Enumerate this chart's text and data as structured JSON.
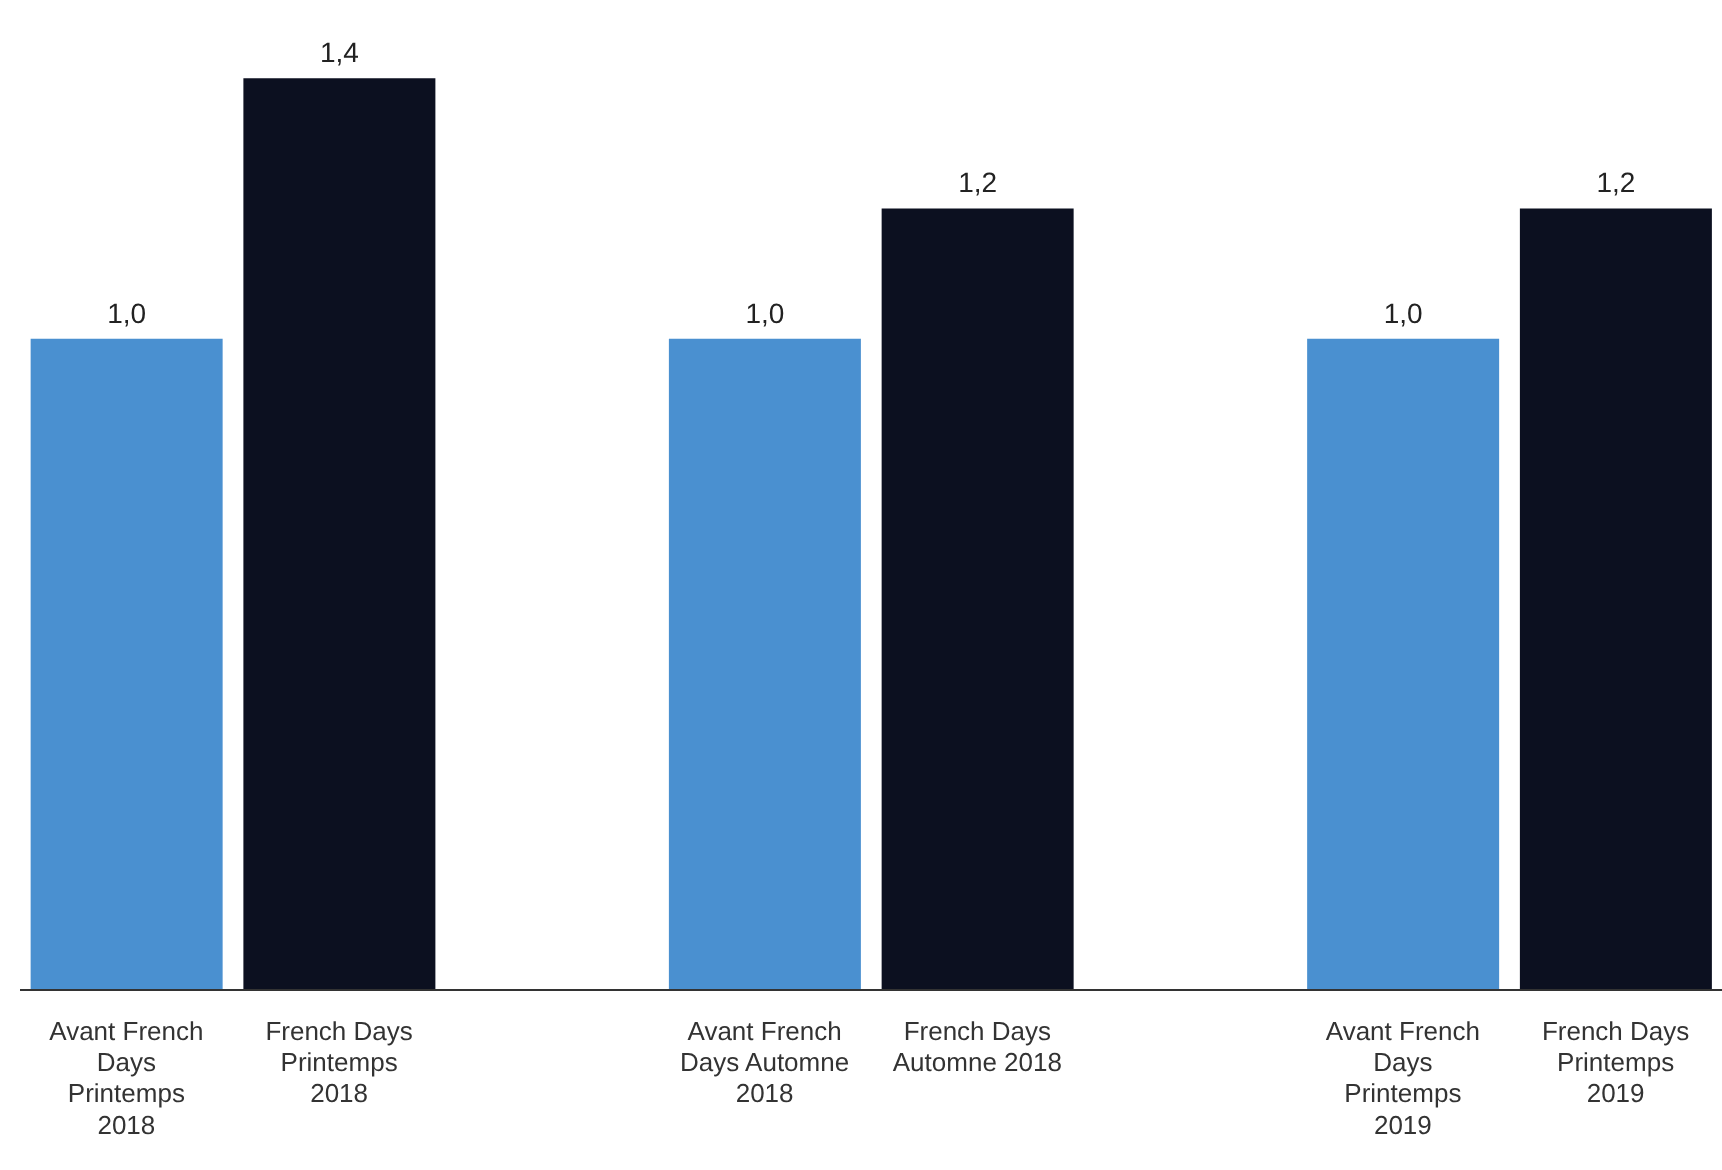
{
  "chart_data": {
    "type": "bar",
    "categories": [
      "Avant French Days Printemps 2018",
      "French Days Printemps 2018",
      "Avant French Days Automne 2018",
      "French Days Automne 2018",
      "Avant French Days Printemps 2019",
      "French Days Printemps 2019"
    ],
    "values": [
      1.0,
      1.4,
      1.0,
      1.2,
      1.0,
      1.2
    ],
    "colors": [
      "#4a90d0",
      "#0c1020",
      "#4a90d0",
      "#0c1020",
      "#4a90d0",
      "#0c1020"
    ],
    "value_labels": [
      "1,0",
      "1,4",
      "1,0",
      "1,2",
      "1,0",
      "1,2"
    ],
    "grid": false,
    "legend": false
  }
}
